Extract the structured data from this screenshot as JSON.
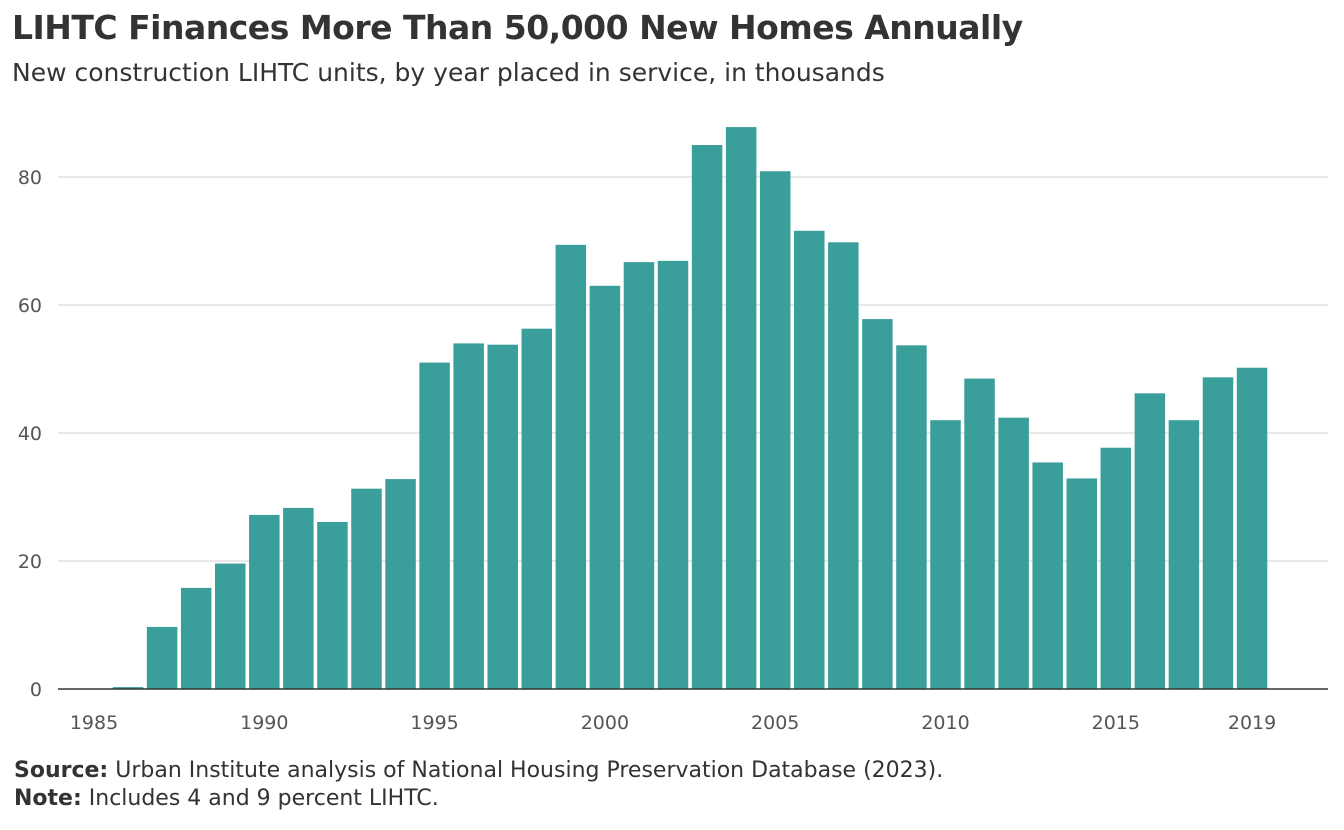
{
  "chart_data": {
    "type": "bar",
    "title": "LIHTC Finances More Than 50,000 New Homes Annually",
    "subtitle": "New construction LIHTC units, by year placed in service, in thousands",
    "x": [
      1986,
      1987,
      1988,
      1989,
      1990,
      1991,
      1992,
      1993,
      1994,
      1995,
      1996,
      1997,
      1998,
      1999,
      2000,
      2001,
      2002,
      2003,
      2004,
      2005,
      2006,
      2007,
      2008,
      2009,
      2010,
      2011,
      2012,
      2013,
      2014,
      2015,
      2016,
      2017,
      2018,
      2019
    ],
    "values": [
      0.3,
      9.7,
      15.8,
      19.6,
      27.2,
      28.3,
      26.1,
      31.3,
      32.8,
      51.0,
      54.0,
      53.8,
      56.3,
      69.4,
      63.0,
      66.7,
      66.9,
      85.0,
      87.8,
      80.9,
      71.6,
      69.8,
      57.8,
      53.7,
      42.0,
      48.5,
      42.4,
      35.4,
      32.9,
      37.7,
      46.2,
      42.0,
      48.7,
      50.2
    ],
    "xlim": [
      1985,
      2021
    ],
    "ylim": [
      0,
      90
    ],
    "x_tick_labels": [
      "1985",
      "1990",
      "1995",
      "2000",
      "2005",
      "2010",
      "2015",
      "2019"
    ],
    "y_tick_labels": [
      "0",
      "20",
      "40",
      "60",
      "80"
    ],
    "xlabel": "",
    "ylabel": "",
    "grid": "horizontal",
    "bar_color": "#3a9e9b"
  },
  "footer": {
    "source_label": "Source:",
    "source_text": " Urban Institute analysis of National Housing Preservation Database (2023).",
    "note_label": "Note:",
    "note_text": " Includes 4 and 9 percent LIHTC."
  }
}
